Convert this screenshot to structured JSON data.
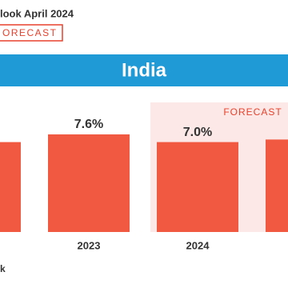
{
  "header": {
    "title": "look April 2024",
    "badge": "ORECAST"
  },
  "chart_data": {
    "type": "bar",
    "title": "India",
    "forecast_label": "FORECAST",
    "categories": [
      null,
      "2023",
      "2024",
      null
    ],
    "values": [
      7.0,
      7.6,
      7.0,
      7.2
    ],
    "value_labels": [
      null,
      "7.6%",
      "7.0%",
      null
    ],
    "color": "#f15a40",
    "ylim": [
      0,
      9
    ]
  },
  "footer": {
    "text": "k"
  }
}
